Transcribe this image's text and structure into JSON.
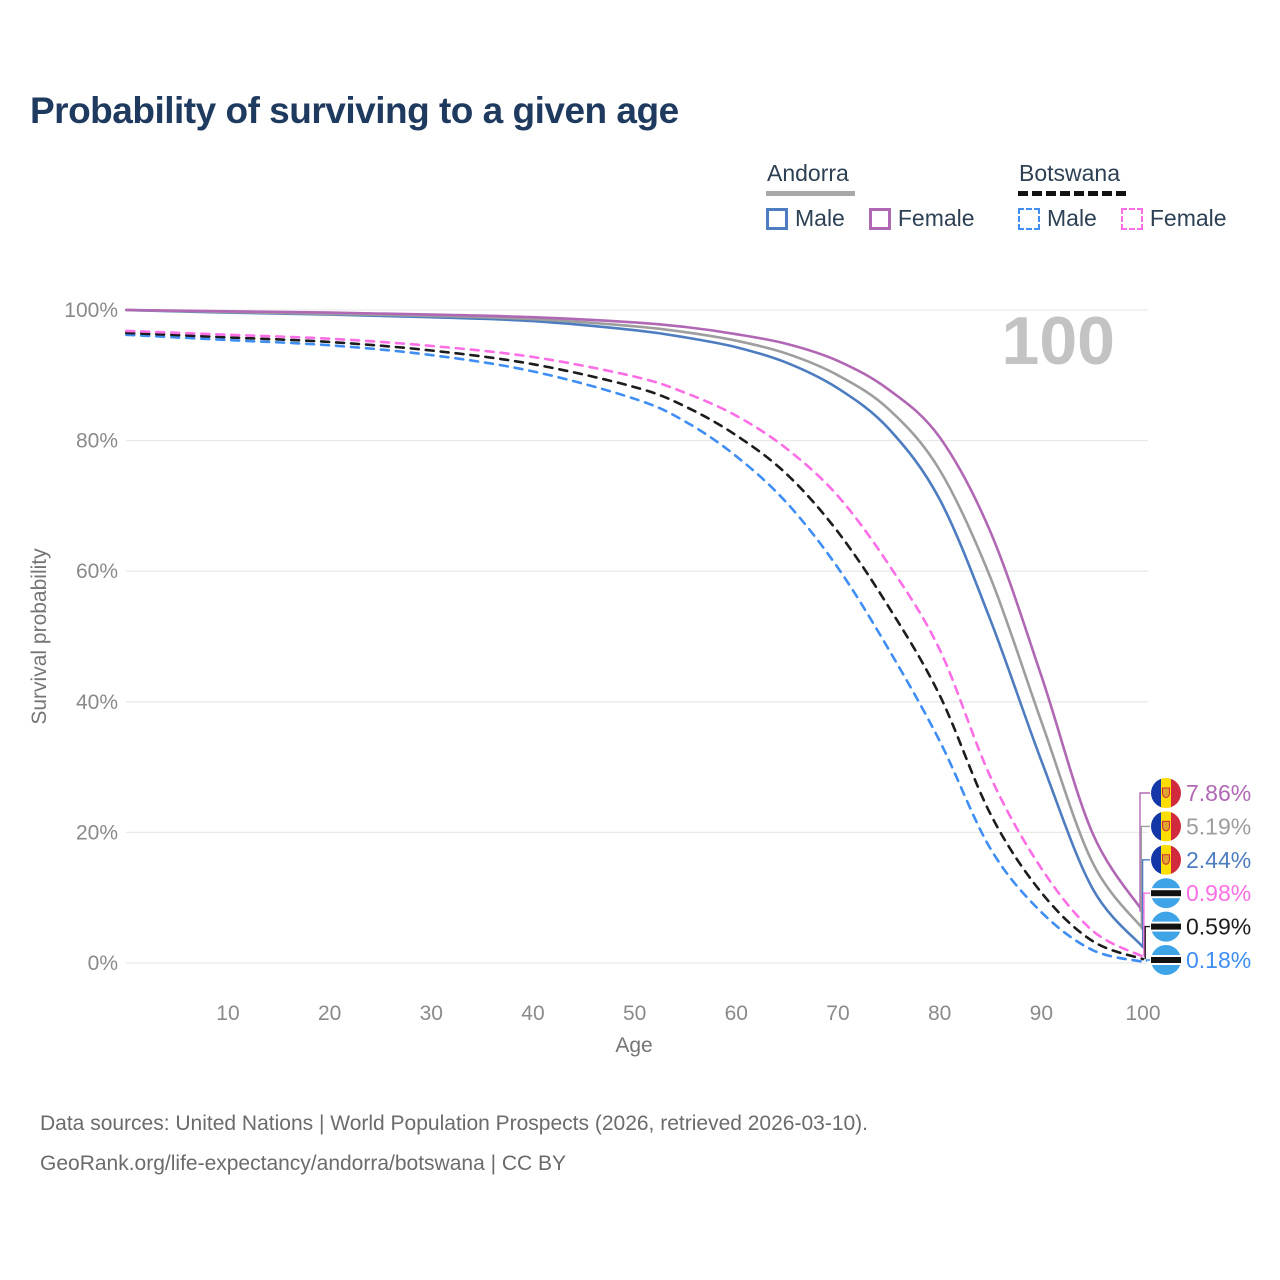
{
  "title": "Probability of surviving to a given age",
  "watermark_age": "100",
  "legend": {
    "groups": [
      {
        "name": "Andorra",
        "underline_color": "#a9a9a9",
        "underline_style": "solid",
        "items": [
          {
            "label": "Male",
            "color": "#4d7dc0",
            "dashed": false
          },
          {
            "label": "Female",
            "color": "#b168b4",
            "dashed": false
          }
        ]
      },
      {
        "name": "Botswana",
        "underline_color": "#121212",
        "underline_style": "dashed",
        "items": [
          {
            "label": "Male",
            "color": "#3f8ef3",
            "dashed": true
          },
          {
            "label": "Female",
            "color": "#fb6ee6",
            "dashed": true
          }
        ]
      }
    ]
  },
  "chart_data": {
    "type": "line",
    "title": "Probability of surviving to a given age",
    "xlabel": "Age",
    "ylabel": "Survival probability",
    "xlim": [
      0,
      100
    ],
    "ylim": [
      0,
      100
    ],
    "x_ticks": [
      10,
      20,
      30,
      40,
      50,
      60,
      70,
      80,
      90,
      100
    ],
    "y_ticks": [
      0,
      20,
      40,
      60,
      80,
      100
    ],
    "y_tick_suffix": "%",
    "grid": true,
    "legend_position": "top-right",
    "x": [
      0,
      10,
      20,
      30,
      40,
      50,
      55,
      60,
      65,
      70,
      75,
      80,
      85,
      90,
      95,
      100
    ],
    "series": [
      {
        "id": "andorra-female",
        "country": "Andorra",
        "sex": "Female",
        "color": "#b168b4",
        "dashed": false,
        "end_label": "7.86%",
        "values": [
          100,
          99.8,
          99.6,
          99.3,
          98.9,
          98.1,
          97.4,
          96.3,
          94.8,
          92.2,
          87.8,
          80.5,
          66,
          44,
          20,
          7.86
        ]
      },
      {
        "id": "andorra-all",
        "country": "Andorra",
        "sex": "All",
        "color": "#9e9e9e",
        "dashed": false,
        "end_label": "5.19%",
        "values": [
          100,
          99.7,
          99.4,
          99.1,
          98.6,
          97.5,
          96.6,
          95.3,
          93.3,
          90,
          84.8,
          75.5,
          59,
          37,
          15.5,
          5.19
        ]
      },
      {
        "id": "andorra-male",
        "country": "Andorra",
        "sex": "Male",
        "color": "#4d7dc0",
        "dashed": false,
        "end_label": "2.44%",
        "values": [
          100,
          99.6,
          99.3,
          98.9,
          98.3,
          96.9,
          95.8,
          94.3,
          91.9,
          88,
          81.8,
          71,
          52.5,
          31,
          11.5,
          2.44
        ]
      },
      {
        "id": "botswana-female",
        "country": "Botswana",
        "sex": "Female",
        "color": "#fb6ee6",
        "dashed": true,
        "end_label": "0.98%",
        "values": [
          96.8,
          96.2,
          95.6,
          94.5,
          92.8,
          89.8,
          87.3,
          83.8,
          78.7,
          71.5,
          61,
          48,
          28.5,
          14.5,
          5,
          0.98
        ]
      },
      {
        "id": "botswana-all",
        "country": "Botswana",
        "sex": "All",
        "color": "#1c1c1c",
        "dashed": true,
        "end_label": "0.59%",
        "values": [
          96.5,
          95.8,
          95.1,
          93.8,
          91.7,
          88.2,
          85.2,
          80.8,
          74.8,
          66,
          54.5,
          41,
          22.8,
          10.8,
          3.4,
          0.59
        ]
      },
      {
        "id": "botswana-male",
        "country": "Botswana",
        "sex": "Male",
        "color": "#3f8ef3",
        "dashed": true,
        "end_label": "0.18%",
        "values": [
          96.2,
          95.4,
          94.6,
          93.1,
          90.6,
          86.4,
          82.9,
          77.6,
          70.4,
          60.5,
          48,
          34,
          17.5,
          7.8,
          2,
          0.18
        ]
      }
    ],
    "flag_colors": {
      "andorra_blue": "#1437a8",
      "andorra_yellow": "#fedd00",
      "andorra_red": "#d1293d",
      "andorra_emblem": "#e0a32e",
      "botswana_blue": "#3fa3e8",
      "botswana_white": "#ffffff",
      "botswana_black": "#111111"
    }
  },
  "footer": {
    "line1": "Data sources: United Nations | World Population Prospects (2026, retrieved 2026-03-10).",
    "line2": "GeoRank.org/life-expectancy/andorra/botswana | CC BY"
  }
}
